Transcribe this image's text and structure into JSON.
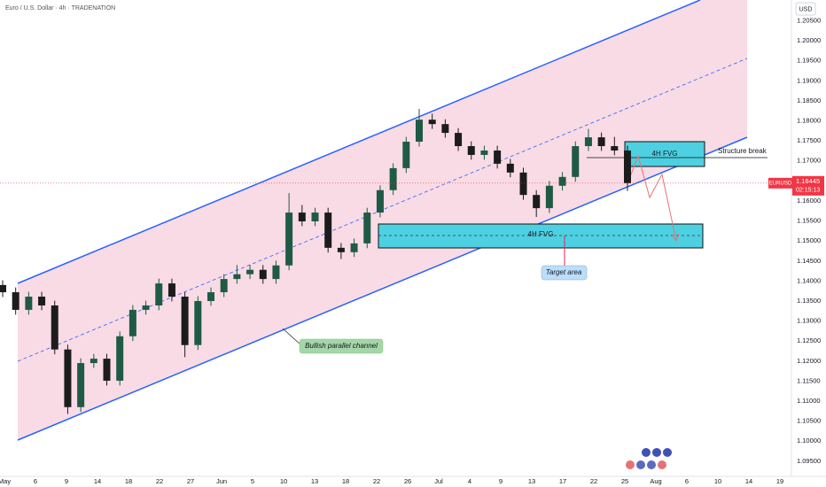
{
  "chart_data": {
    "type": "candlestick",
    "title": "Euro / U.S. Dollar · 4h · TRADENATION",
    "currency": "USD",
    "symbol": "EURUSD",
    "last_price": 1.16445,
    "countdown": "02:15:13",
    "up_color": "#1f5a45",
    "down_color": "#1c1c1c",
    "grid": false,
    "x_labels": [
      "May",
      "6",
      "9",
      "14",
      "18",
      "22",
      "27",
      "Jun",
      "5",
      "10",
      "13",
      "18",
      "22",
      "26",
      "Jul",
      "4",
      "9",
      "13",
      "17",
      "22",
      "25",
      "Aug",
      "6",
      "10",
      "14",
      "19"
    ],
    "open": [
      1.139,
      1.1372,
      1.1328,
      1.1361,
      1.1339,
      1.1229,
      1.1085,
      1.1195,
      1.1206,
      1.1151,
      1.1262,
      1.1328,
      1.1339,
      1.1394,
      1.1361,
      1.124,
      1.135,
      1.1372,
      1.1405,
      1.1417,
      1.1428,
      1.1405,
      1.1439,
      1.1571,
      1.1549,
      1.1571,
      1.1483,
      1.1472,
      1.1494,
      1.1571,
      1.1627,
      1.1682,
      1.1748,
      1.1803,
      1.1792,
      1.177,
      1.1737,
      1.1715,
      1.1726,
      1.1693,
      1.1671,
      1.1615,
      1.1582,
      1.1638,
      1.166,
      1.1737,
      1.1759,
      1.1737,
      1.1726
    ],
    "high": [
      1.1402,
      1.1384,
      1.1373,
      1.1373,
      1.1351,
      1.1241,
      1.1207,
      1.1218,
      1.1218,
      1.1274,
      1.134,
      1.1351,
      1.1406,
      1.1406,
      1.1373,
      1.1362,
      1.1384,
      1.1417,
      1.144,
      1.144,
      1.144,
      1.1451,
      1.162,
      1.159,
      1.1583,
      1.1583,
      1.1495,
      1.1506,
      1.1583,
      1.1639,
      1.1694,
      1.176,
      1.183,
      1.1818,
      1.1804,
      1.1782,
      1.1749,
      1.1738,
      1.1738,
      1.1705,
      1.1683,
      1.1627,
      1.165,
      1.1672,
      1.1749,
      1.178,
      1.1771,
      1.176,
      1.1738
    ],
    "low": [
      1.136,
      1.1316,
      1.1316,
      1.1327,
      1.1217,
      1.1068,
      1.1073,
      1.1183,
      1.1139,
      1.1139,
      1.125,
      1.1316,
      1.1327,
      1.1349,
      1.121,
      1.1228,
      1.1338,
      1.136,
      1.1393,
      1.1405,
      1.1393,
      1.1393,
      1.1427,
      1.1537,
      1.1537,
      1.1471,
      1.1455,
      1.146,
      1.1482,
      1.1559,
      1.1615,
      1.167,
      1.1736,
      1.178,
      1.1758,
      1.1725,
      1.1703,
      1.1703,
      1.1681,
      1.1659,
      1.1603,
      1.156,
      1.157,
      1.1626,
      1.1648,
      1.1725,
      1.1725,
      1.1714,
      1.1625
    ],
    "close": [
      1.1372,
      1.1328,
      1.1361,
      1.1339,
      1.1229,
      1.1085,
      1.1195,
      1.1206,
      1.1151,
      1.1262,
      1.1328,
      1.1339,
      1.1394,
      1.1361,
      1.124,
      1.135,
      1.1372,
      1.1405,
      1.1417,
      1.1428,
      1.1405,
      1.1439,
      1.1571,
      1.1549,
      1.1571,
      1.1483,
      1.1472,
      1.1494,
      1.1571,
      1.1627,
      1.1682,
      1.1748,
      1.1803,
      1.1792,
      1.177,
      1.1737,
      1.1715,
      1.1726,
      1.1693,
      1.1671,
      1.1615,
      1.1582,
      1.1638,
      1.166,
      1.1737,
      1.1759,
      1.1737,
      1.1726,
      1.16445
    ],
    "ylim": [
      1.0912,
      1.2102
    ],
    "yticks": [
      {
        "value": 1.205,
        "label": "1.20500"
      },
      {
        "value": 1.2,
        "label": "1.20000"
      },
      {
        "value": 1.195,
        "label": "1.19500"
      },
      {
        "value": 1.19,
        "label": "1.19000"
      },
      {
        "value": 1.185,
        "label": "1.18500"
      },
      {
        "value": 1.18,
        "label": "1.18000"
      },
      {
        "value": 1.175,
        "label": "1.17500"
      },
      {
        "value": 1.17,
        "label": "1.17000"
      },
      {
        "value": 1.16,
        "label": "1.16000"
      },
      {
        "value": 1.155,
        "label": "1.15500"
      },
      {
        "value": 1.15,
        "label": "1.15000"
      },
      {
        "value": 1.145,
        "label": "1.14500"
      },
      {
        "value": 1.14,
        "label": "1.14000"
      },
      {
        "value": 1.135,
        "label": "1.13500"
      },
      {
        "value": 1.13,
        "label": "1.13000"
      },
      {
        "value": 1.125,
        "label": "1.12500"
      },
      {
        "value": 1.12,
        "label": "1.12000"
      },
      {
        "value": 1.115,
        "label": "1.11500"
      },
      {
        "value": 1.11,
        "label": "1.11000"
      },
      {
        "value": 1.105,
        "label": "1.10500"
      },
      {
        "value": 1.1,
        "label": "1.10000"
      },
      {
        "value": 1.095,
        "label": "1.09500"
      }
    ],
    "annotations": {
      "fvg_upper": "4H FVG",
      "fvg_lower": "4H FVG",
      "structure_break": "Structure break",
      "target": "Target area",
      "channel": "Bullish parallel channel"
    }
  }
}
